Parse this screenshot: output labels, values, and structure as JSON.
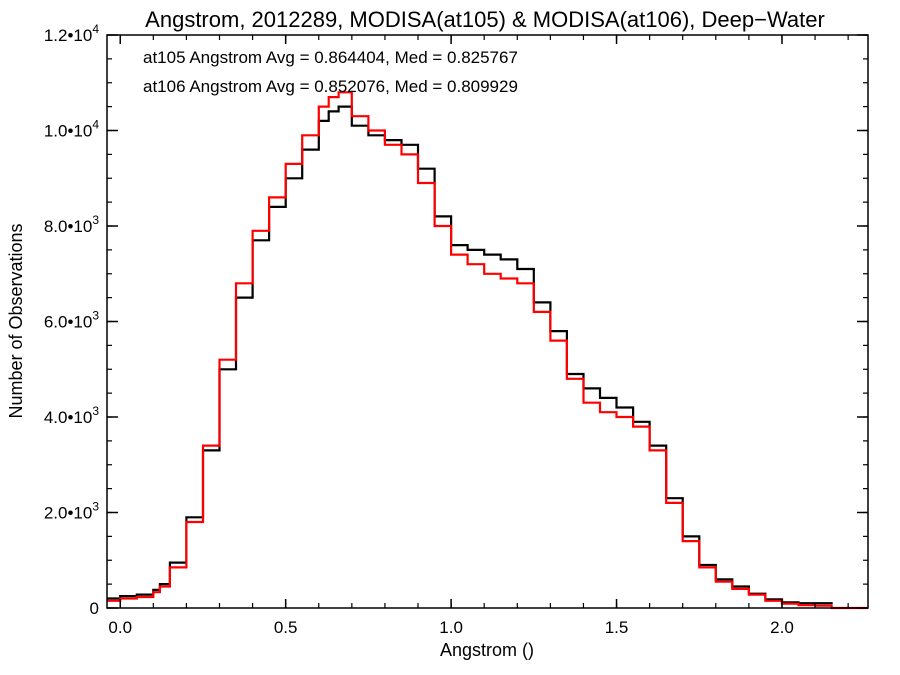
{
  "chart_data": {
    "type": "line",
    "step": true,
    "title": "Angstrom, 2012289, MODISA(at105) & MODISA(at106), Deep−Water",
    "xlabel": "Angstrom ()",
    "ylabel": "Number of Observations",
    "xlim": [
      -0.04,
      2.26
    ],
    "ylim": [
      0,
      12000
    ],
    "x_ticks": [
      {
        "value": 0.0,
        "label": "0.0"
      },
      {
        "value": 0.5,
        "label": "0.5"
      },
      {
        "value": 1.0,
        "label": "1.0"
      },
      {
        "value": 1.5,
        "label": "1.5"
      },
      {
        "value": 2.0,
        "label": "2.0"
      }
    ],
    "y_ticks": [
      {
        "value": 0,
        "mantissa": "0",
        "exponent": ""
      },
      {
        "value": 2000,
        "mantissa": "2.0•10",
        "exponent": "3"
      },
      {
        "value": 4000,
        "mantissa": "4.0•10",
        "exponent": "3"
      },
      {
        "value": 6000,
        "mantissa": "6.0•10",
        "exponent": "3"
      },
      {
        "value": 8000,
        "mantissa": "8.0•10",
        "exponent": "3"
      },
      {
        "value": 10000,
        "mantissa": "1.0•10",
        "exponent": "4"
      },
      {
        "value": 12000,
        "mantissa": "1.2•10",
        "exponent": "4"
      }
    ],
    "annotations": [
      {
        "text": "at105 Angstrom Avg = 0.864404, Med = 0.825767",
        "color": "#000000"
      },
      {
        "text": "at106 Angstrom Avg = 0.852076, Med = 0.809929",
        "color": "#ff0000"
      }
    ],
    "series": [
      {
        "color": "#000000",
        "x": [
          -0.04,
          0.0,
          0.05,
          0.1,
          0.12,
          0.15,
          0.2,
          0.25,
          0.3,
          0.35,
          0.4,
          0.45,
          0.5,
          0.55,
          0.6,
          0.63,
          0.66,
          0.7,
          0.75,
          0.8,
          0.85,
          0.9,
          0.95,
          1.0,
          1.05,
          1.1,
          1.15,
          1.2,
          1.25,
          1.3,
          1.35,
          1.4,
          1.45,
          1.5,
          1.55,
          1.6,
          1.65,
          1.7,
          1.75,
          1.8,
          1.85,
          1.9,
          1.95,
          2.0,
          2.05,
          2.1,
          2.15
        ],
        "y": [
          200,
          250,
          280,
          380,
          500,
          950,
          1900,
          3300,
          5000,
          6500,
          7700,
          8400,
          9000,
          9600,
          10200,
          10400,
          10500,
          10100,
          9900,
          9800,
          9700,
          9200,
          8200,
          7600,
          7500,
          7400,
          7300,
          7100,
          6400,
          5800,
          4900,
          4600,
          4400,
          4200,
          3900,
          3400,
          2300,
          1500,
          900,
          600,
          450,
          300,
          180,
          120,
          100,
          100,
          80
        ]
      },
      {
        "color": "#ff0000",
        "x": [
          -0.04,
          0.0,
          0.05,
          0.1,
          0.12,
          0.15,
          0.2,
          0.25,
          0.3,
          0.35,
          0.4,
          0.45,
          0.5,
          0.55,
          0.6,
          0.63,
          0.66,
          0.7,
          0.75,
          0.8,
          0.85,
          0.9,
          0.95,
          1.0,
          1.05,
          1.1,
          1.15,
          1.2,
          1.25,
          1.3,
          1.35,
          1.4,
          1.45,
          1.5,
          1.55,
          1.6,
          1.65,
          1.7,
          1.75,
          1.8,
          1.85,
          1.9,
          1.95,
          2.0,
          2.05,
          2.1,
          2.15,
          2.26
        ],
        "y": [
          150,
          200,
          230,
          330,
          450,
          850,
          1800,
          3400,
          5200,
          6800,
          7900,
          8600,
          9300,
          9900,
          10500,
          10700,
          10800,
          10300,
          10000,
          9700,
          9500,
          8900,
          8000,
          7400,
          7200,
          7000,
          6900,
          6800,
          6200,
          5600,
          4800,
          4300,
          4100,
          4000,
          3800,
          3300,
          2200,
          1400,
          850,
          550,
          400,
          280,
          150,
          90,
          60,
          50,
          0,
          0
        ]
      }
    ]
  }
}
